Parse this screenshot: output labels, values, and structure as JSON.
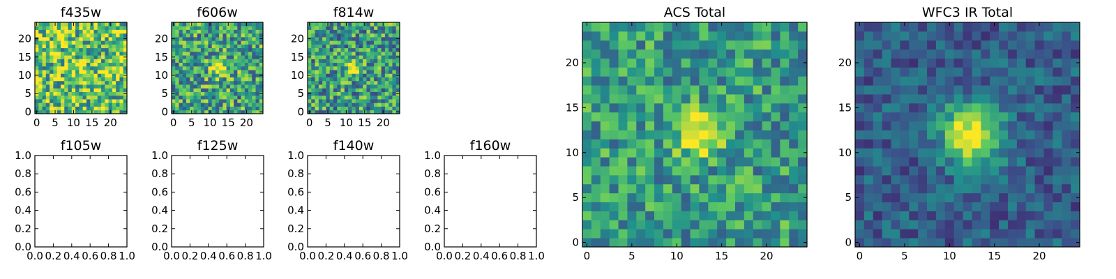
{
  "colormap": [
    "#440154",
    "#3b528b",
    "#21918c",
    "#5ec962",
    "#fde725"
  ],
  "chart_data": [
    {
      "type": "heatmap",
      "title": "f435w",
      "size": 25,
      "peak": [
        12,
        12
      ],
      "peak_strength": 0.15,
      "sigma": 2.0,
      "noise": 0.38,
      "base": 0.72,
      "seed": 11,
      "xticks": [
        0,
        5,
        10,
        15,
        20
      ],
      "yticks": [
        0,
        5,
        10,
        15,
        20
      ],
      "xlim": [
        -0.5,
        24.5
      ],
      "ylim": [
        -0.5,
        24.5
      ]
    },
    {
      "type": "heatmap",
      "title": "f606w",
      "size": 25,
      "peak": [
        12.5,
        12
      ],
      "peak_strength": 0.55,
      "sigma": 1.6,
      "noise": 0.34,
      "base": 0.58,
      "seed": 23,
      "xticks": [
        0,
        5,
        10,
        15,
        20
      ],
      "yticks": [
        0,
        5,
        10,
        15,
        20
      ],
      "xlim": [
        -0.5,
        24.5
      ],
      "ylim": [
        -0.5,
        24.5
      ]
    },
    {
      "type": "heatmap",
      "title": "f814w",
      "size": 25,
      "peak": [
        12,
        12
      ],
      "peak_strength": 0.6,
      "sigma": 1.3,
      "noise": 0.34,
      "base": 0.55,
      "seed": 37,
      "xticks": [
        0,
        5,
        10,
        15,
        20
      ],
      "yticks": [
        0,
        5,
        10,
        15,
        20
      ],
      "xlim": [
        -0.5,
        24.5
      ],
      "ylim": [
        -0.5,
        24.5
      ]
    },
    {
      "type": "scatter",
      "title": "f105w",
      "x": [],
      "y": [],
      "xticks": [
        "0.0",
        "0.2",
        "0.4",
        "0.6",
        "0.8",
        "1.0"
      ],
      "yticks": [
        "0.0",
        "0.2",
        "0.4",
        "0.6",
        "0.8",
        "1.0"
      ],
      "xlim": [
        0,
        1
      ],
      "ylim": [
        0,
        1
      ]
    },
    {
      "type": "scatter",
      "title": "f125w",
      "x": [],
      "y": [],
      "xticks": [
        "0.0",
        "0.2",
        "0.4",
        "0.6",
        "0.8",
        "1.0"
      ],
      "yticks": [
        "0.0",
        "0.2",
        "0.4",
        "0.6",
        "0.8",
        "1.0"
      ],
      "xlim": [
        0,
        1
      ],
      "ylim": [
        0,
        1
      ]
    },
    {
      "type": "scatter",
      "title": "f140w",
      "x": [],
      "y": [],
      "xticks": [
        "0.0",
        "0.2",
        "0.4",
        "0.6",
        "0.8",
        "1.0"
      ],
      "yticks": [
        "0.0",
        "0.2",
        "0.4",
        "0.6",
        "0.8",
        "1.0"
      ],
      "xlim": [
        0,
        1
      ],
      "ylim": [
        0,
        1
      ]
    },
    {
      "type": "scatter",
      "title": "f160w",
      "x": [],
      "y": [],
      "xticks": [
        "0.0",
        "0.2",
        "0.4",
        "0.6",
        "0.8",
        "1.0"
      ],
      "yticks": [
        "0.0",
        "0.2",
        "0.4",
        "0.6",
        "0.8",
        "1.0"
      ],
      "xlim": [
        0,
        1
      ],
      "ylim": [
        0,
        1
      ]
    },
    {
      "type": "heatmap",
      "title": "ACS Total",
      "size": 25,
      "peak": [
        12.5,
        12
      ],
      "peak_strength": 0.6,
      "sigma": 1.6,
      "noise": 0.26,
      "base": 0.55,
      "seed": 53,
      "xticks": [
        0,
        5,
        10,
        15,
        20
      ],
      "yticks": [
        0,
        5,
        10,
        15,
        20
      ],
      "xlim": [
        -0.5,
        24.5
      ],
      "ylim": [
        -0.5,
        24.5
      ]
    },
    {
      "type": "heatmap",
      "title": "WFC3 IR Total",
      "size": 25,
      "peak": [
        12.5,
        12
      ],
      "peak_strength": 0.72,
      "sigma": 2.4,
      "noise": 0.16,
      "base": 0.3,
      "seed": 71,
      "xticks": [
        0,
        5,
        10,
        15,
        20
      ],
      "yticks": [
        0,
        5,
        10,
        15,
        20
      ],
      "xlim": [
        -0.5,
        24.5
      ],
      "ylim": [
        -0.5,
        24.5
      ]
    }
  ]
}
